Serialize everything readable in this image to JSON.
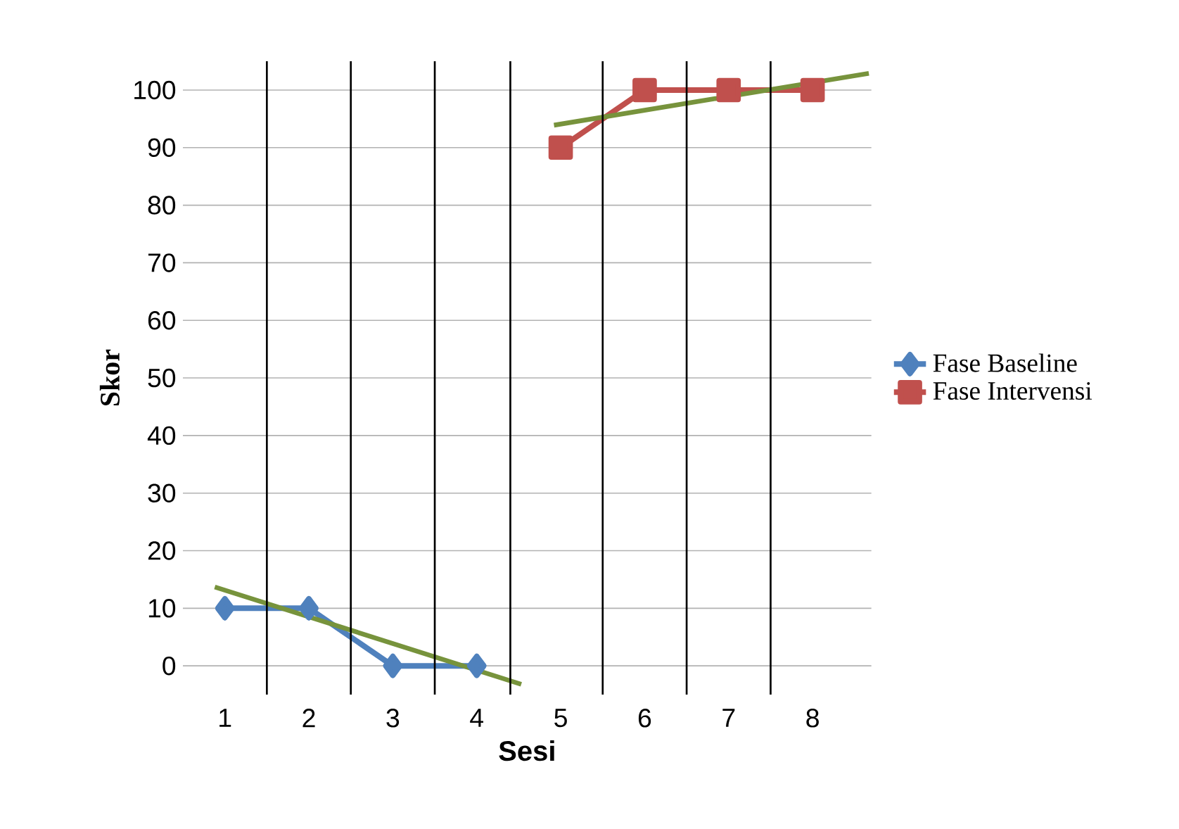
{
  "chart_data": {
    "type": "line",
    "xlabel": "Sesi",
    "ylabel": "Skor",
    "x": [
      1,
      2,
      3,
      4,
      5,
      6,
      7,
      8
    ],
    "xlim": [
      0.5,
      8.7
    ],
    "xticks": [
      1,
      2,
      3,
      4,
      5,
      6,
      7,
      8
    ],
    "ylim": [
      -5,
      105
    ],
    "yticks": [
      0,
      10,
      20,
      30,
      40,
      50,
      60,
      70,
      80,
      90,
      100
    ],
    "grid": "y",
    "legend": "right",
    "line_style": "solid",
    "series": [
      {
        "name": "Fase Baseline",
        "color": "#4f81bd",
        "marker": "diamond",
        "values": [
          10,
          10,
          0,
          0,
          null,
          null,
          null,
          null
        ]
      },
      {
        "name": "Fase Intervensi",
        "color": "#c0504d",
        "marker": "square",
        "values": [
          null,
          null,
          null,
          null,
          90,
          100,
          100,
          100
        ]
      },
      {
        "color": "#77933c",
        "marker": "none",
        "x": [
          0.88,
          4.53
        ],
        "values": [
          13.7,
          -3.2
        ]
      },
      {
        "color": "#77933c",
        "marker": "none",
        "x": [
          4.92,
          8.67
        ],
        "values": [
          93.9,
          102.9
        ]
      }
    ],
    "ref_lines": [
      {
        "axis": "x",
        "value": 1.5,
        "color": "#000000"
      },
      {
        "axis": "x",
        "value": 2.5,
        "color": "#000000"
      },
      {
        "axis": "x",
        "value": 3.5,
        "color": "#000000"
      },
      {
        "axis": "x",
        "value": 4.4,
        "color": "#000000"
      },
      {
        "axis": "x",
        "value": 5.5,
        "color": "#000000"
      },
      {
        "axis": "x",
        "value": 6.5,
        "color": "#000000"
      },
      {
        "axis": "x",
        "value": 7.5,
        "color": "#000000"
      }
    ]
  }
}
